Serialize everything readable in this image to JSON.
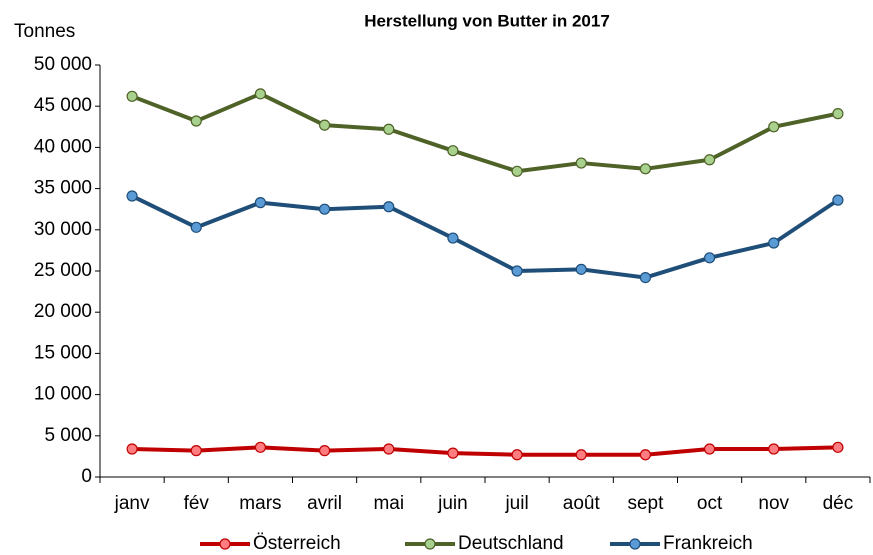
{
  "chart_data": {
    "type": "line",
    "title": "Herstellung von Butter in 2017",
    "y_label": "Tonnes",
    "categories": [
      "janv",
      "fév",
      "mars",
      "avril",
      "mai",
      "juin",
      "juil",
      "août",
      "sept",
      "oct",
      "nov",
      "déc"
    ],
    "series": [
      {
        "name": "Österreich",
        "color": "#c00000",
        "marker_color": "#ff7c80",
        "values": [
          3400,
          3200,
          3600,
          3200,
          3400,
          2900,
          2700,
          2700,
          2700,
          3400,
          3400,
          3600
        ]
      },
      {
        "name": "Deutschland",
        "color": "#4f6228",
        "marker_color": "#a9d18e",
        "values": [
          46200,
          43200,
          46500,
          42700,
          42200,
          39600,
          37100,
          38100,
          37400,
          38500,
          42500,
          44100
        ]
      },
      {
        "name": "Frankreich",
        "color": "#1f4e79",
        "marker_color": "#5b9bd5",
        "values": [
          34100,
          30300,
          33300,
          32500,
          32800,
          29000,
          25000,
          25200,
          24200,
          26600,
          28400,
          33600
        ]
      }
    ],
    "ylim": [
      0,
      50000
    ],
    "yticks": [
      0,
      {
        "value": 5000,
        "label": "5 000"
      },
      {
        "value": 10000,
        "label": "10 000"
      },
      {
        "value": 15000,
        "label": "15 000"
      },
      {
        "value": 20000,
        "label": "20 000"
      },
      {
        "value": 25000,
        "label": "25 000"
      },
      {
        "value": 30000,
        "label": "30 000"
      },
      {
        "value": 35000,
        "label": "35 000"
      },
      {
        "value": 40000,
        "label": "40 000"
      },
      {
        "value": 45000,
        "label": "45 000"
      },
      {
        "value": 50000,
        "label": "50 000"
      }
    ],
    "grid": false,
    "legend": "bottom"
  }
}
